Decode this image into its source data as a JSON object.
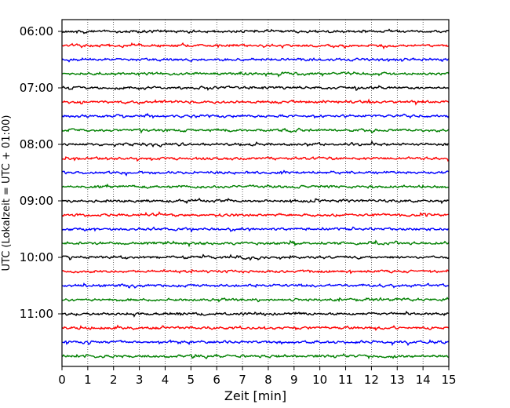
{
  "chart_data": {
    "type": "line",
    "title": "",
    "xlabel": "Zeit  [min]",
    "ylabel": "UTC (Lokalzeit = UTC + 01:00)",
    "xlim": [
      0,
      15
    ],
    "x_ticks": [
      0,
      1,
      2,
      3,
      4,
      5,
      6,
      7,
      8,
      9,
      10,
      11,
      12,
      13,
      14,
      15
    ],
    "grid": {
      "vertical": true,
      "style": "dotted"
    },
    "legend": "none",
    "trace_interval_min": 15,
    "row_time_labels": [
      "06:00",
      "07:00",
      "08:00",
      "09:00",
      "10:00",
      "11:00"
    ],
    "series": [
      {
        "start": "06:00",
        "color": "#000000"
      },
      {
        "start": "06:15",
        "color": "#ff0000"
      },
      {
        "start": "06:30",
        "color": "#0000ff"
      },
      {
        "start": "06:45",
        "color": "#008000"
      },
      {
        "start": "07:00",
        "color": "#000000"
      },
      {
        "start": "07:15",
        "color": "#ff0000"
      },
      {
        "start": "07:30",
        "color": "#0000ff"
      },
      {
        "start": "07:45",
        "color": "#008000"
      },
      {
        "start": "08:00",
        "color": "#000000"
      },
      {
        "start": "08:15",
        "color": "#ff0000"
      },
      {
        "start": "08:30",
        "color": "#0000ff"
      },
      {
        "start": "08:45",
        "color": "#008000"
      },
      {
        "start": "09:00",
        "color": "#000000"
      },
      {
        "start": "09:15",
        "color": "#ff0000"
      },
      {
        "start": "09:30",
        "color": "#0000ff"
      },
      {
        "start": "09:45",
        "color": "#008000"
      },
      {
        "start": "10:00",
        "color": "#000000"
      },
      {
        "start": "10:15",
        "color": "#ff0000"
      },
      {
        "start": "10:30",
        "color": "#0000ff"
      },
      {
        "start": "10:45",
        "color": "#008000"
      },
      {
        "start": "11:00",
        "color": "#000000"
      },
      {
        "start": "11:15",
        "color": "#ff0000"
      },
      {
        "start": "11:30",
        "color": "#0000ff"
      },
      {
        "start": "11:45",
        "color": "#008000"
      }
    ]
  }
}
